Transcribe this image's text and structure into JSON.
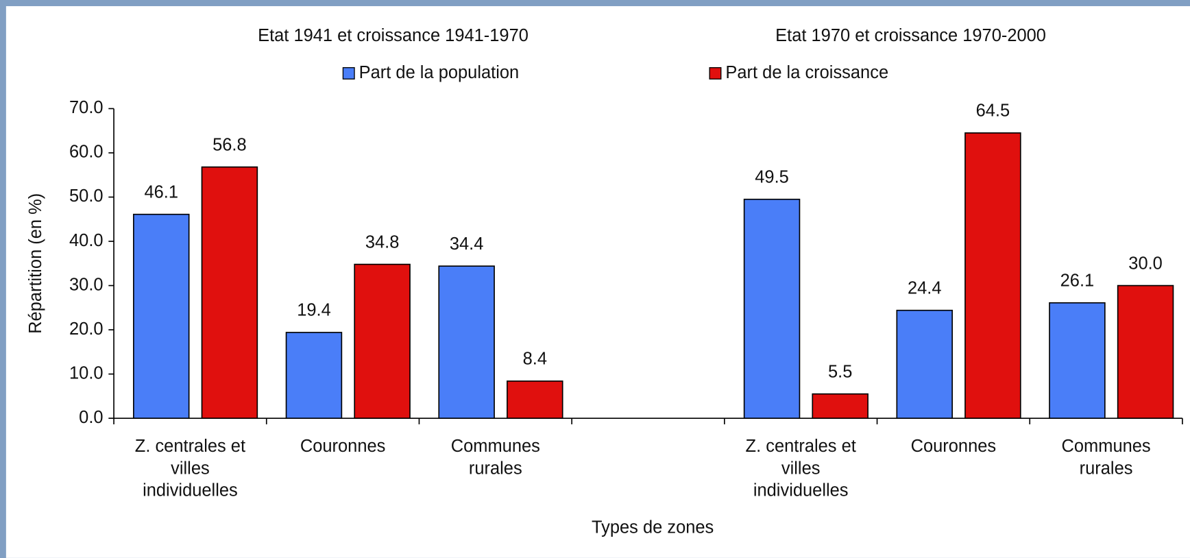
{
  "chart_data": {
    "type": "bar",
    "annotations": [
      "Etat 1941 et croissance 1941-1970",
      "Etat 1970 et croissance 1970-2000"
    ],
    "ylabel": "Répartition (en %)",
    "xlabel": "Types de zones",
    "categories": [
      "Z. centrales et villes individuelles",
      "Couronnes",
      "Communes rurales",
      null,
      "Z. centrales et villes individuelles",
      "Couronnes",
      "Communes rurales"
    ],
    "series": [
      {
        "name": "Part de la population",
        "color": "#4a7ef8",
        "values": [
          46.1,
          19.4,
          34.4,
          null,
          49.5,
          24.4,
          26.1
        ],
        "value_labels": [
          "46.1",
          "19.4",
          "34.4",
          null,
          "49.5",
          "24.4",
          "26.1"
        ]
      },
      {
        "name": "Part de la croissance",
        "color": "#e0100e",
        "values": [
          56.8,
          34.8,
          8.4,
          null,
          5.5,
          64.5,
          30.0
        ],
        "value_labels": [
          "56.8",
          "34.8",
          "8.4",
          null,
          "5.5",
          "64.5",
          "30.0"
        ]
      }
    ],
    "ylim": [
      0,
      70
    ],
    "yticks": [
      {
        "value": 0,
        "label": "0.0"
      },
      {
        "value": 10,
        "label": "10.0"
      },
      {
        "value": 20,
        "label": "20.0"
      },
      {
        "value": 30,
        "label": "30.0"
      },
      {
        "value": 40,
        "label": "40.0"
      },
      {
        "value": 50,
        "label": "50.0"
      },
      {
        "value": 60,
        "label": "60.0"
      },
      {
        "value": 70,
        "label": "70.0"
      }
    ],
    "grid": false
  }
}
